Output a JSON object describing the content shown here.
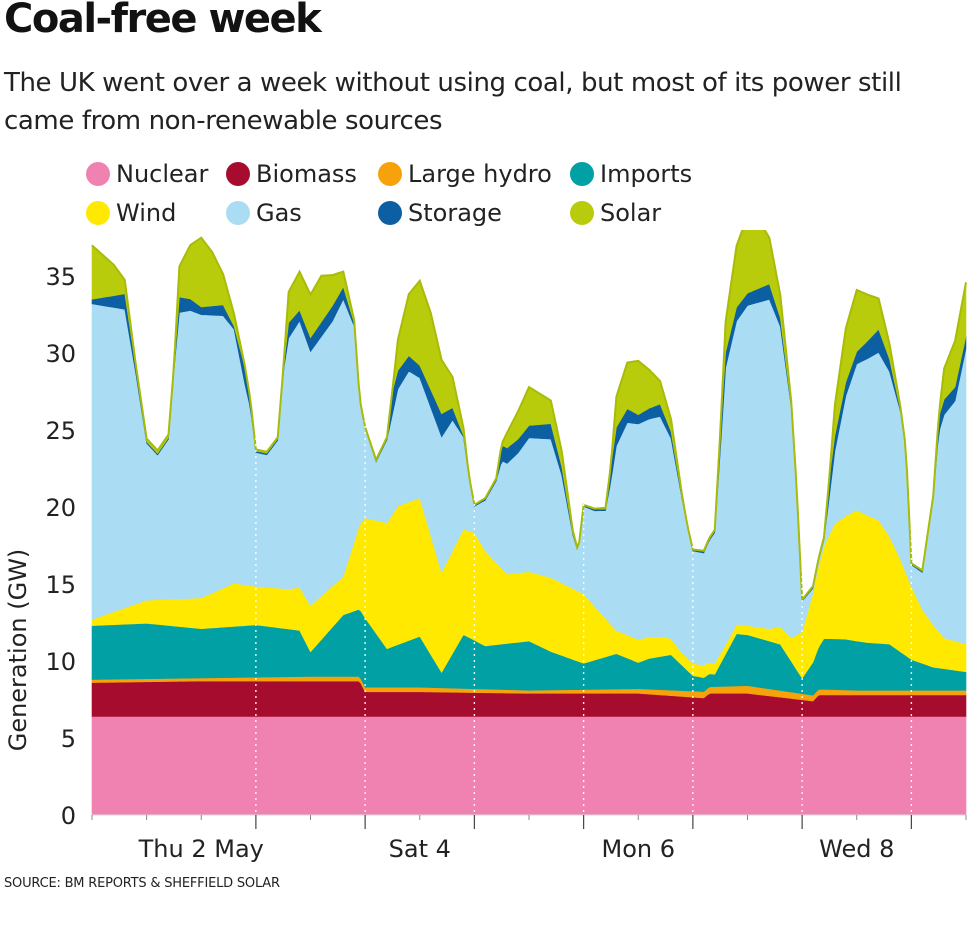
{
  "title": "Coal-free week",
  "subtitle": "The UK went over a week without using coal, but most of its power still came from non-renewable sources",
  "source": "SOURCE: BM REPORTS & SHEFFIELD SOLAR",
  "legend": [
    {
      "name": "Nuclear",
      "color": "#ef82b0"
    },
    {
      "name": "Biomass",
      "color": "#a50c2e"
    },
    {
      "name": "Large hydro",
      "color": "#f7a10b"
    },
    {
      "name": "Imports",
      "color": "#00a0a5"
    },
    {
      "name": "Wind",
      "color": "#ffe900"
    },
    {
      "name": "Gas",
      "color": "#aadcf4"
    },
    {
      "name": "Storage",
      "color": "#0d5fa3"
    },
    {
      "name": "Solar",
      "color": "#b9cc0b"
    }
  ],
  "chart_data": {
    "type": "area",
    "stacked": true,
    "ylabel": "Generation (GW)",
    "ylim": [
      0,
      38
    ],
    "yticks": [
      0,
      5,
      10,
      15,
      20,
      25,
      30,
      35
    ],
    "xlim": [
      0,
      8
    ],
    "xtick_labels": [
      {
        "label": "Thu 2 May",
        "x": 1
      },
      {
        "label": "Sat 4",
        "x": 3
      },
      {
        "label": "Mon 6",
        "x": 5
      },
      {
        "label": "Wed 8",
        "x": 7
      }
    ],
    "day_boundaries": [
      1.5,
      2.5,
      3.5,
      4.5,
      5.5,
      6.5,
      7.5
    ],
    "x_unit": "days from start (midnight Wed 1 May = 0.5)",
    "series": [
      {
        "name": "Nuclear",
        "color": "#ef82b0",
        "x": [
          0,
          8
        ],
        "values": [
          6.4,
          6.4
        ]
      },
      {
        "name": "Biomass",
        "color": "#a50c2e",
        "x": [
          0,
          1,
          2,
          2.45,
          2.5,
          3,
          4,
          5,
          5.6,
          5.65,
          6,
          6.6,
          6.65,
          7,
          8
        ],
        "values": [
          2.2,
          2.3,
          2.3,
          2.3,
          1.6,
          1.6,
          1.5,
          1.5,
          1.2,
          1.5,
          1.5,
          1.0,
          1.4,
          1.4,
          1.4
        ]
      },
      {
        "name": "Large hydro",
        "color": "#f7a10b",
        "x": [
          0,
          1,
          2,
          3,
          4,
          5,
          6,
          7,
          8
        ],
        "values": [
          0.2,
          0.2,
          0.3,
          0.3,
          0.2,
          0.3,
          0.5,
          0.3,
          0.3
        ]
      },
      {
        "name": "Imports",
        "color": "#00a0a5",
        "x": [
          0,
          0.5,
          1,
          1.5,
          1.9,
          2,
          2.3,
          2.5,
          2.7,
          3,
          3.2,
          3.4,
          3.6,
          3.8,
          4,
          4.2,
          4.5,
          4.8,
          5,
          5.1,
          5.3,
          5.5,
          5.7,
          5.9,
          6.1,
          6.3,
          6.5,
          6.7,
          6.9,
          7.1,
          7.3,
          7.5,
          7.7,
          7.9,
          8
        ],
        "values": [
          3.5,
          3.6,
          3.2,
          3.4,
          3.0,
          1.6,
          4.0,
          4.5,
          2.5,
          3.3,
          1.0,
          3.5,
          2.8,
          3.0,
          3.2,
          2.5,
          1.7,
          2.3,
          1.7,
          2.0,
          2.3,
          1.0,
          0.8,
          3.4,
          3.2,
          3.0,
          1.0,
          3.3,
          3.3,
          3.1,
          3.0,
          2.0,
          1.5,
          1.3,
          1.2
        ]
      },
      {
        "name": "Wind",
        "color": "#ffe900",
        "x": [
          0,
          0.5,
          1,
          1.3,
          1.5,
          1.8,
          2,
          2.3,
          2.5,
          2.8,
          3,
          3.2,
          3.5,
          3.8,
          4,
          4.2,
          4.5,
          4.8,
          5,
          5.2,
          5.4,
          5.6,
          5.8,
          6,
          6.2,
          6.4,
          6.6,
          6.8,
          7,
          7.2,
          7.4,
          7.6,
          7.8,
          8
        ],
        "values": [
          0.4,
          1.5,
          2.0,
          2.8,
          2.5,
          2.6,
          3.0,
          2.5,
          6.5,
          9.0,
          9.0,
          6.5,
          7.0,
          4.5,
          4.5,
          4.8,
          4.5,
          1.5,
          1.5,
          1.3,
          0.8,
          0.8,
          0.6,
          0.6,
          0.8,
          1.5,
          4.5,
          7.5,
          8.5,
          8.0,
          6.0,
          3.5,
          2.0,
          1.8
        ]
      },
      {
        "name": "Gas",
        "color": "#aadcf4",
        "x": [
          0,
          0.3,
          0.4,
          0.5,
          0.6,
          0.7,
          0.75,
          0.8,
          0.9,
          1.0,
          1.2,
          1.3,
          1.4,
          1.45,
          1.5,
          1.6,
          1.7,
          1.75,
          1.8,
          1.9,
          2.0,
          2.2,
          2.3,
          2.4,
          2.45,
          2.5,
          2.6,
          2.7,
          2.75,
          2.8,
          2.9,
          3.0,
          3.2,
          3.3,
          3.4,
          3.45,
          3.5,
          3.6,
          3.7,
          3.75,
          3.8,
          3.9,
          4.0,
          4.2,
          4.3,
          4.4,
          4.45,
          4.5,
          4.6,
          4.7,
          4.75,
          4.8,
          4.9,
          5.0,
          5.2,
          5.3,
          5.4,
          5.45,
          5.5,
          5.6,
          5.7,
          5.75,
          5.8,
          5.9,
          6.0,
          6.2,
          6.3,
          6.4,
          6.45,
          6.5,
          6.6,
          6.7,
          6.75,
          6.8,
          6.9,
          7.0,
          7.2,
          7.3,
          7.4,
          7.45,
          7.5,
          7.6,
          7.7,
          7.75,
          7.8,
          7.9,
          8.0
        ],
        "values": [
          20.5,
          19.4,
          15.0,
          10.2,
          9.4,
          10.4,
          14.8,
          18.6,
          18.7,
          18.4,
          17.7,
          16.5,
          13.0,
          11.5,
          8.7,
          8.6,
          9.6,
          14.0,
          16.3,
          17.3,
          16.5,
          17.2,
          18.0,
          14.0,
          8.0,
          5.8,
          3.8,
          5.4,
          6.5,
          7.6,
          8.5,
          7.8,
          8.8,
          8.5,
          6.0,
          3.5,
          1.7,
          3.3,
          5.3,
          7.0,
          7.2,
          7.8,
          8.7,
          9.0,
          7.0,
          3.5,
          2.5,
          5.7,
          6.2,
          7.0,
          9.3,
          12.0,
          13.8,
          14.0,
          14.3,
          13.0,
          10.0,
          8.5,
          7.3,
          7.3,
          8.5,
          13.0,
          18.0,
          19.7,
          20.8,
          21.4,
          19.5,
          15.0,
          9.5,
          2.0,
          0.3,
          0.4,
          2.5,
          4.7,
          7.8,
          9.5,
          10.9,
          10.7,
          9.6,
          8.0,
          1.4,
          2.4,
          8.2,
          12.9,
          14.5,
          15.6,
          19.2
        ]
      },
      {
        "name": "Storage",
        "color": "#0d5fa3",
        "x": [
          0,
          0.3,
          0.4,
          0.5,
          0.75,
          0.8,
          1.0,
          1.2,
          1.3,
          1.4,
          1.5,
          1.75,
          1.8,
          1.9,
          2.0,
          2.2,
          2.3,
          2.4,
          2.5,
          2.7,
          2.75,
          2.8,
          3.0,
          3.2,
          3.4,
          3.5,
          3.7,
          3.75,
          3.8,
          4.0,
          4.2,
          4.4,
          4.5,
          4.7,
          4.75,
          4.8,
          5.0,
          5.2,
          5.4,
          5.5,
          5.7,
          5.75,
          5.8,
          6.0,
          6.2,
          6.4,
          6.5,
          6.7,
          6.75,
          6.8,
          7.0,
          7.2,
          7.4,
          7.5,
          7.7,
          7.75,
          7.8,
          8.0
        ],
        "values": [
          0.3,
          1.0,
          0.4,
          0.1,
          0.1,
          1.0,
          0.5,
          0.7,
          0.2,
          1.1,
          0.1,
          0.1,
          1.0,
          0.7,
          0.9,
          1.0,
          0.8,
          0.2,
          0.1,
          0.1,
          1.5,
          1.2,
          0.8,
          1.5,
          0.1,
          0.1,
          0.1,
          1.0,
          1.0,
          0.8,
          1.0,
          0.1,
          0.1,
          0.1,
          1.0,
          1.2,
          0.6,
          0.8,
          0.1,
          0.1,
          0.1,
          1.2,
          1.0,
          0.8,
          1.0,
          0.1,
          0.1,
          0.1,
          1.2,
          1.0,
          0.8,
          1.5,
          0.1,
          0.1,
          0.1,
          1.0,
          1.0,
          0.8
        ]
      },
      {
        "name": "Solar",
        "color": "#b9cc0b",
        "x": [
          0,
          0.2,
          0.3,
          0.4,
          0.5,
          0.6,
          0.75,
          0.8,
          0.9,
          1.0,
          1.1,
          1.2,
          1.3,
          1.4,
          1.45,
          1.5,
          1.75,
          1.8,
          1.9,
          2.0,
          2.1,
          2.2,
          2.3,
          2.4,
          2.45,
          2.5,
          2.75,
          2.8,
          2.9,
          3.0,
          3.1,
          3.2,
          3.3,
          3.4,
          3.45,
          3.5,
          3.75,
          3.8,
          3.9,
          4.0,
          4.1,
          4.2,
          4.3,
          4.4,
          4.45,
          4.5,
          4.75,
          4.8,
          4.9,
          5.0,
          5.1,
          5.2,
          5.3,
          5.4,
          5.45,
          5.5,
          5.75,
          5.8,
          5.9,
          6.0,
          6.1,
          6.2,
          6.3,
          6.4,
          6.45,
          6.5,
          6.75,
          6.8,
          6.9,
          7.0,
          7.1,
          7.2,
          7.3,
          7.4,
          7.45,
          7.5,
          7.75,
          7.8,
          7.9,
          8.0
        ],
        "values": [
          3.5,
          2.0,
          0.9,
          0.2,
          0.2,
          0.2,
          0.2,
          2.0,
          3.5,
          4.5,
          3.5,
          2.0,
          0.8,
          0.1,
          0.0,
          0.1,
          0.1,
          2.0,
          2.5,
          2.8,
          3.0,
          2.0,
          1.0,
          0.2,
          0.0,
          0.0,
          0.1,
          2.0,
          4.0,
          5.5,
          5.0,
          3.5,
          2.0,
          0.5,
          0.0,
          0.0,
          0.1,
          1.0,
          1.8,
          2.5,
          2.0,
          1.5,
          1.0,
          0.2,
          0.0,
          0.0,
          0.1,
          2.0,
          3.0,
          3.5,
          2.5,
          1.5,
          0.8,
          0.2,
          0.0,
          0.0,
          0.1,
          2.0,
          4.0,
          5.0,
          4.5,
          3.0,
          1.5,
          0.3,
          0.0,
          0.0,
          0.1,
          2.0,
          3.5,
          4.0,
          3.0,
          2.0,
          1.0,
          0.2,
          0.0,
          0.0,
          0.1,
          2.0,
          3.0,
          3.5
        ]
      }
    ]
  }
}
